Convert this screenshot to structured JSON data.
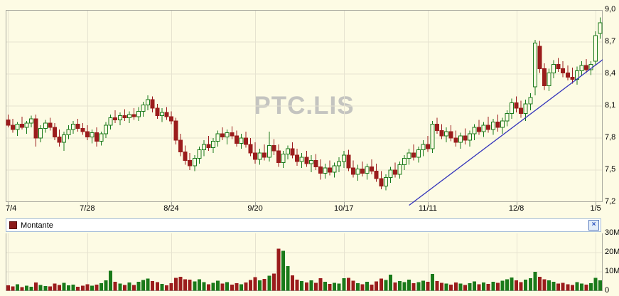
{
  "watermark": "PTC.LIS",
  "legend": {
    "label": "Montante",
    "close_icon": "×",
    "swatch_color": "#8b1a1a"
  },
  "colors": {
    "background": "#fdfbe4",
    "grid": "#e6e3d0",
    "border": "#a8a89e",
    "bull": "#1a7a1a",
    "bear": "#9b1c1c",
    "trendline": "#3333bb",
    "watermark": "#c4c4c0"
  },
  "price_axis": {
    "max": 9.0,
    "min": 7.2,
    "step": 0.3,
    "labels": [
      "9,0",
      "8,7",
      "8,4",
      "8,1",
      "7,8",
      "7,5",
      "7,2"
    ]
  },
  "volume_axis": {
    "max_millions": 30,
    "labels": [
      "30M",
      "20M",
      "10M",
      "0"
    ]
  },
  "chart_data": {
    "type": "candlestick",
    "symbol": "PTC.LIS",
    "price_range": [
      7.2,
      9.0
    ],
    "volume_range_millions": [
      0,
      30
    ],
    "grid": true,
    "x_tick_labels": [
      "7/4",
      "7/28",
      "8/24",
      "9/20",
      "10/17",
      "11/11",
      "12/8",
      "1/5"
    ],
    "x_tick_indices": [
      0,
      17,
      35,
      53,
      72,
      90,
      109,
      126
    ],
    "trendline": {
      "from_index": 86,
      "from_price": 7.17,
      "to_index": 128,
      "to_price": 8.55
    },
    "candles_format": [
      "open",
      "high",
      "low",
      "close",
      "volume_millions"
    ],
    "candles": [
      [
        7.97,
        8.02,
        7.9,
        7.92,
        3.0
      ],
      [
        7.92,
        7.98,
        7.85,
        7.88,
        2.5
      ],
      [
        7.88,
        7.95,
        7.82,
        7.93,
        3.5
      ],
      [
        7.93,
        8.0,
        7.88,
        7.9,
        2.0
      ],
      [
        7.9,
        7.96,
        7.84,
        7.94,
        2.8
      ],
      [
        7.94,
        8.01,
        7.9,
        7.98,
        2.2
      ],
      [
        7.98,
        8.02,
        7.72,
        7.8,
        4.5
      ],
      [
        7.8,
        7.92,
        7.76,
        7.89,
        3.2
      ],
      [
        7.89,
        7.97,
        7.85,
        7.94,
        2.6
      ],
      [
        7.94,
        7.99,
        7.87,
        7.9,
        2.4
      ],
      [
        7.9,
        7.94,
        7.78,
        7.81,
        3.8
      ],
      [
        7.81,
        7.88,
        7.72,
        7.76,
        3.1
      ],
      [
        7.76,
        7.86,
        7.68,
        7.83,
        4.2
      ],
      [
        7.83,
        7.92,
        7.79,
        7.88,
        2.9
      ],
      [
        7.88,
        7.96,
        7.84,
        7.93,
        3.4
      ],
      [
        7.93,
        7.98,
        7.86,
        7.89,
        2.3
      ],
      [
        7.89,
        7.94,
        7.83,
        7.86,
        2.7
      ],
      [
        7.86,
        7.92,
        7.78,
        7.81,
        3.6
      ],
      [
        7.81,
        7.88,
        7.75,
        7.85,
        2.8
      ],
      [
        7.85,
        7.9,
        7.72,
        7.77,
        3.3
      ],
      [
        7.77,
        7.86,
        7.73,
        7.84,
        4.0
      ],
      [
        7.84,
        7.95,
        7.8,
        7.92,
        5.5
      ],
      [
        7.92,
        8.02,
        7.88,
        7.99,
        10.5
      ],
      [
        7.99,
        8.06,
        7.94,
        7.97,
        4.8
      ],
      [
        7.97,
        8.04,
        7.92,
        8.01,
        3.9
      ],
      [
        8.01,
        8.07,
        7.96,
        7.99,
        3.1
      ],
      [
        7.99,
        8.05,
        7.94,
        8.02,
        4.4
      ],
      [
        8.02,
        8.08,
        7.97,
        8.0,
        3.2
      ],
      [
        8.0,
        8.09,
        7.96,
        8.05,
        4.9
      ],
      [
        8.05,
        8.14,
        8.0,
        8.11,
        5.8
      ],
      [
        8.11,
        8.2,
        8.06,
        8.16,
        6.5
      ],
      [
        8.16,
        8.19,
        8.04,
        8.08,
        5.2
      ],
      [
        8.08,
        8.12,
        7.98,
        8.01,
        4.6
      ],
      [
        8.01,
        8.08,
        7.95,
        8.04,
        3.7
      ],
      [
        8.04,
        8.09,
        7.97,
        8.0,
        3.0
      ],
      [
        8.0,
        8.05,
        7.93,
        7.96,
        4.1
      ],
      [
        7.96,
        7.99,
        7.74,
        7.78,
        6.8
      ],
      [
        7.78,
        7.84,
        7.63,
        7.67,
        7.5
      ],
      [
        7.67,
        7.73,
        7.55,
        7.59,
        6.2
      ],
      [
        7.59,
        7.66,
        7.5,
        7.54,
        5.9
      ],
      [
        7.54,
        7.64,
        7.49,
        7.61,
        5.0
      ],
      [
        7.61,
        7.72,
        7.56,
        7.69,
        6.1
      ],
      [
        7.69,
        7.78,
        7.63,
        7.74,
        4.7
      ],
      [
        7.74,
        7.82,
        7.68,
        7.71,
        3.5
      ],
      [
        7.71,
        7.8,
        7.66,
        7.77,
        4.3
      ],
      [
        7.77,
        7.87,
        7.72,
        7.84,
        5.4
      ],
      [
        7.84,
        7.9,
        7.78,
        7.81,
        3.8
      ],
      [
        7.81,
        7.88,
        7.74,
        7.85,
        4.6
      ],
      [
        7.85,
        7.91,
        7.79,
        7.82,
        3.4
      ],
      [
        7.82,
        7.87,
        7.72,
        7.75,
        4.0
      ],
      [
        7.75,
        7.84,
        7.7,
        7.8,
        3.6
      ],
      [
        7.8,
        7.86,
        7.71,
        7.74,
        4.4
      ],
      [
        7.74,
        7.8,
        7.63,
        7.66,
        5.7
      ],
      [
        7.66,
        7.76,
        7.56,
        7.6,
        7.2
      ],
      [
        7.6,
        7.7,
        7.55,
        7.66,
        5.5
      ],
      [
        7.66,
        7.74,
        7.59,
        7.62,
        6.3
      ],
      [
        7.62,
        7.86,
        7.58,
        7.73,
        8.0
      ],
      [
        7.73,
        7.79,
        7.64,
        7.68,
        9.0
      ],
      [
        7.68,
        7.74,
        7.53,
        7.57,
        22.0
      ],
      [
        7.57,
        7.68,
        7.52,
        7.65,
        21.0
      ],
      [
        7.65,
        7.73,
        7.6,
        7.7,
        13.0
      ],
      [
        7.7,
        7.76,
        7.61,
        7.64,
        8.2
      ],
      [
        7.64,
        7.7,
        7.54,
        7.58,
        6.0
      ],
      [
        7.58,
        7.66,
        7.52,
        7.62,
        5.1
      ],
      [
        7.62,
        7.68,
        7.53,
        7.56,
        4.5
      ],
      [
        7.56,
        7.64,
        7.48,
        7.59,
        5.6
      ],
      [
        7.59,
        7.65,
        7.5,
        7.53,
        4.2
      ],
      [
        7.53,
        7.6,
        7.41,
        7.47,
        6.6
      ],
      [
        7.47,
        7.56,
        7.42,
        7.52,
        4.9
      ],
      [
        7.52,
        7.59,
        7.45,
        7.48,
        3.7
      ],
      [
        7.48,
        7.57,
        7.43,
        7.54,
        4.3
      ],
      [
        7.54,
        7.62,
        7.48,
        7.58,
        3.9
      ],
      [
        7.58,
        7.68,
        7.52,
        7.64,
        6.7
      ],
      [
        7.64,
        7.69,
        7.49,
        7.52,
        6.9
      ],
      [
        7.52,
        7.59,
        7.43,
        7.46,
        5.3
      ],
      [
        7.46,
        7.55,
        7.4,
        7.51,
        4.1
      ],
      [
        7.51,
        7.58,
        7.44,
        7.47,
        3.5
      ],
      [
        7.47,
        7.56,
        7.41,
        7.53,
        4.8
      ],
      [
        7.53,
        7.6,
        7.46,
        7.49,
        3.3
      ],
      [
        7.49,
        7.56,
        7.39,
        7.42,
        5.0
      ],
      [
        7.42,
        7.49,
        7.32,
        7.35,
        6.4
      ],
      [
        7.35,
        7.46,
        7.31,
        7.43,
        5.8
      ],
      [
        7.43,
        7.53,
        7.38,
        7.5,
        8.5
      ],
      [
        7.5,
        7.57,
        7.43,
        7.46,
        4.4
      ],
      [
        7.46,
        7.58,
        7.42,
        7.55,
        5.2
      ],
      [
        7.55,
        7.64,
        7.5,
        7.61,
        4.6
      ],
      [
        7.61,
        7.7,
        7.55,
        7.66,
        5.9
      ],
      [
        7.66,
        7.74,
        7.59,
        7.62,
        4.0
      ],
      [
        7.62,
        7.72,
        7.57,
        7.69,
        4.7
      ],
      [
        7.69,
        7.78,
        7.63,
        7.74,
        5.4
      ],
      [
        7.74,
        7.82,
        7.67,
        7.7,
        4.9
      ],
      [
        7.7,
        7.96,
        7.66,
        7.93,
        8.8
      ],
      [
        7.93,
        7.99,
        7.84,
        7.87,
        5.1
      ],
      [
        7.87,
        7.93,
        7.79,
        7.82,
        4.2
      ],
      [
        7.82,
        7.9,
        7.76,
        7.86,
        3.8
      ],
      [
        7.86,
        7.92,
        7.77,
        7.8,
        3.4
      ],
      [
        7.8,
        7.87,
        7.72,
        7.76,
        4.5
      ],
      [
        7.76,
        7.85,
        7.7,
        7.82,
        3.9
      ],
      [
        7.82,
        7.89,
        7.74,
        7.78,
        3.2
      ],
      [
        7.78,
        7.87,
        7.72,
        7.84,
        4.1
      ],
      [
        7.84,
        7.93,
        7.78,
        7.9,
        5.0
      ],
      [
        7.9,
        7.97,
        7.83,
        7.86,
        3.6
      ],
      [
        7.86,
        7.95,
        7.81,
        7.92,
        4.4
      ],
      [
        7.92,
        8.0,
        7.85,
        7.88,
        3.7
      ],
      [
        7.88,
        7.98,
        7.83,
        7.95,
        4.8
      ],
      [
        7.95,
        8.02,
        7.86,
        7.9,
        4.2
      ],
      [
        7.9,
        7.99,
        7.84,
        7.96,
        5.3
      ],
      [
        7.96,
        8.06,
        7.91,
        8.03,
        6.1
      ],
      [
        8.03,
        8.17,
        7.98,
        8.13,
        7.0
      ],
      [
        8.13,
        8.19,
        8.04,
        8.08,
        5.5
      ],
      [
        8.08,
        8.15,
        7.99,
        8.03,
        4.7
      ],
      [
        8.03,
        8.16,
        7.96,
        8.12,
        5.9
      ],
      [
        8.12,
        8.22,
        8.06,
        8.18,
        6.6
      ],
      [
        8.28,
        8.72,
        8.2,
        8.69,
        10.0
      ],
      [
        8.66,
        8.71,
        8.41,
        8.45,
        7.4
      ],
      [
        8.45,
        8.5,
        8.25,
        8.29,
        6.2
      ],
      [
        8.29,
        8.45,
        8.24,
        8.41,
        5.6
      ],
      [
        8.41,
        8.53,
        8.36,
        8.49,
        4.9
      ],
      [
        8.49,
        8.55,
        8.42,
        8.45,
        3.8
      ],
      [
        8.45,
        8.52,
        8.37,
        8.41,
        4.3
      ],
      [
        8.41,
        8.48,
        8.34,
        8.37,
        3.5
      ],
      [
        8.37,
        8.46,
        8.31,
        8.35,
        3.1
      ],
      [
        8.35,
        8.47,
        8.3,
        8.43,
        4.6
      ],
      [
        8.43,
        8.52,
        8.38,
        8.48,
        3.9
      ],
      [
        8.48,
        8.54,
        8.41,
        8.44,
        3.3
      ],
      [
        8.44,
        8.52,
        8.39,
        8.49,
        4.1
      ],
      [
        8.52,
        8.8,
        8.48,
        8.76,
        6.8
      ],
      [
        8.78,
        8.93,
        8.73,
        8.88,
        5.5
      ]
    ]
  }
}
